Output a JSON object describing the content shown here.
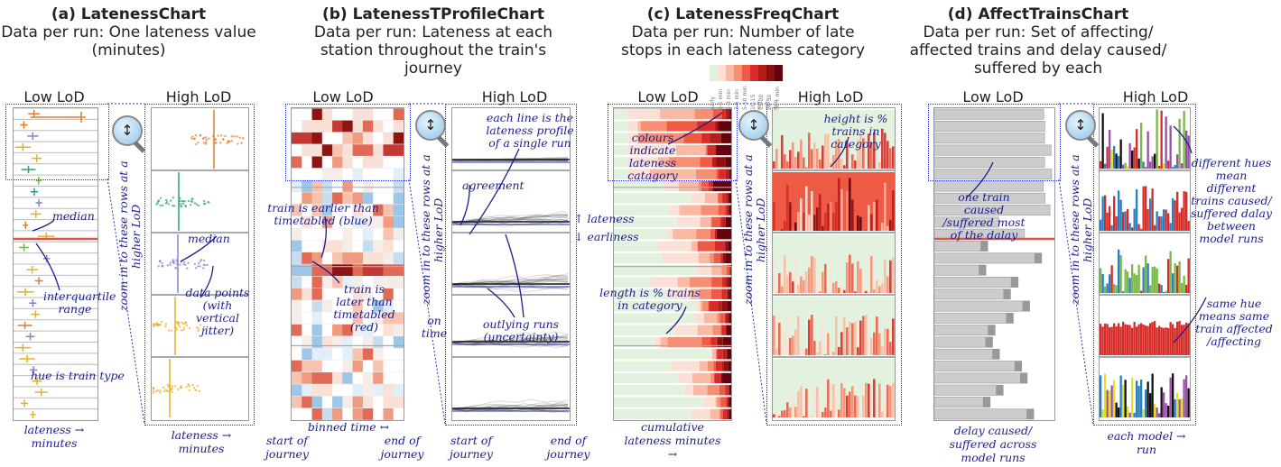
{
  "panels": [
    {
      "title": "(a) LatenessChart",
      "subtitle": "Data per run: One lateness value (minutes)"
    },
    {
      "title": "(b) LatenessTProfileChart",
      "subtitle": "Data per run: Lateness at each station throughout the train's journey"
    },
    {
      "title": "(c) LatenessFreqChart",
      "subtitle": "Data per run: Number of late stops in each lateness category"
    },
    {
      "title": "(d) AffectTrainsChart",
      "subtitle": "Data per run: Set of affecting/ affected trains and delay caused/ suffered by each"
    }
  ],
  "lod": {
    "low": "Low LoD",
    "high": "High LoD"
  },
  "zoom_text": "zoom in to these rows at a higher LoD",
  "a": {
    "median": "median",
    "iqr": "interquartile range",
    "hue": "hue is train type",
    "median2": "median",
    "datapoints": "data points (with vertical jitter)",
    "axis_low": "lateness → minutes",
    "axis_high": "lateness → minutes"
  },
  "b": {
    "earlier": "train is earlier than timetabled (blue)",
    "later": "train is later than timetabled (red)",
    "each_line": "each line is the lateness profile of a single run",
    "agreement": "agreement",
    "lateness": "↑ lateness",
    "earliness": "↓ earliness",
    "ontime": "on time",
    "outlying": "outlying runs (uncertainty)",
    "binned": "binned time ↔",
    "start_low": "start of journey",
    "end_low": "end of journey",
    "start_high": "start of journey",
    "end_high": "end of journey"
  },
  "c": {
    "legend": [
      "early",
      "0-1 min",
      "1-3 min",
      "3-5 min",
      "5-10 min",
      "10-15 min",
      "15-20 min",
      "20-30 min",
      "30+ min"
    ],
    "legend_colors": [
      "#e3f2de",
      "#fbe0d6",
      "#f9b9a3",
      "#f68e73",
      "#ef5a45",
      "#d62b27",
      "#b71c1c",
      "#8e0f0f",
      "#67000d"
    ],
    "colours": "colours indicate lateness catagory",
    "height": "height is % trains in category",
    "length": "length is % trains in category",
    "axis": "cumulative lateness minutes →"
  },
  "d": {
    "one_train": "one train caused /suffered most of the dalay",
    "different": "different hues mean different trains caused/ suffered dalay between model runs",
    "same": "same hue means same train affected /affecting",
    "axis_low": "delay caused/ suffered across model runs",
    "axis_high": "each model → run"
  },
  "colors": {
    "annotation": "#1a1f8a",
    "zoom_border": "#2b33b8",
    "median_line": "#d9534f"
  }
}
